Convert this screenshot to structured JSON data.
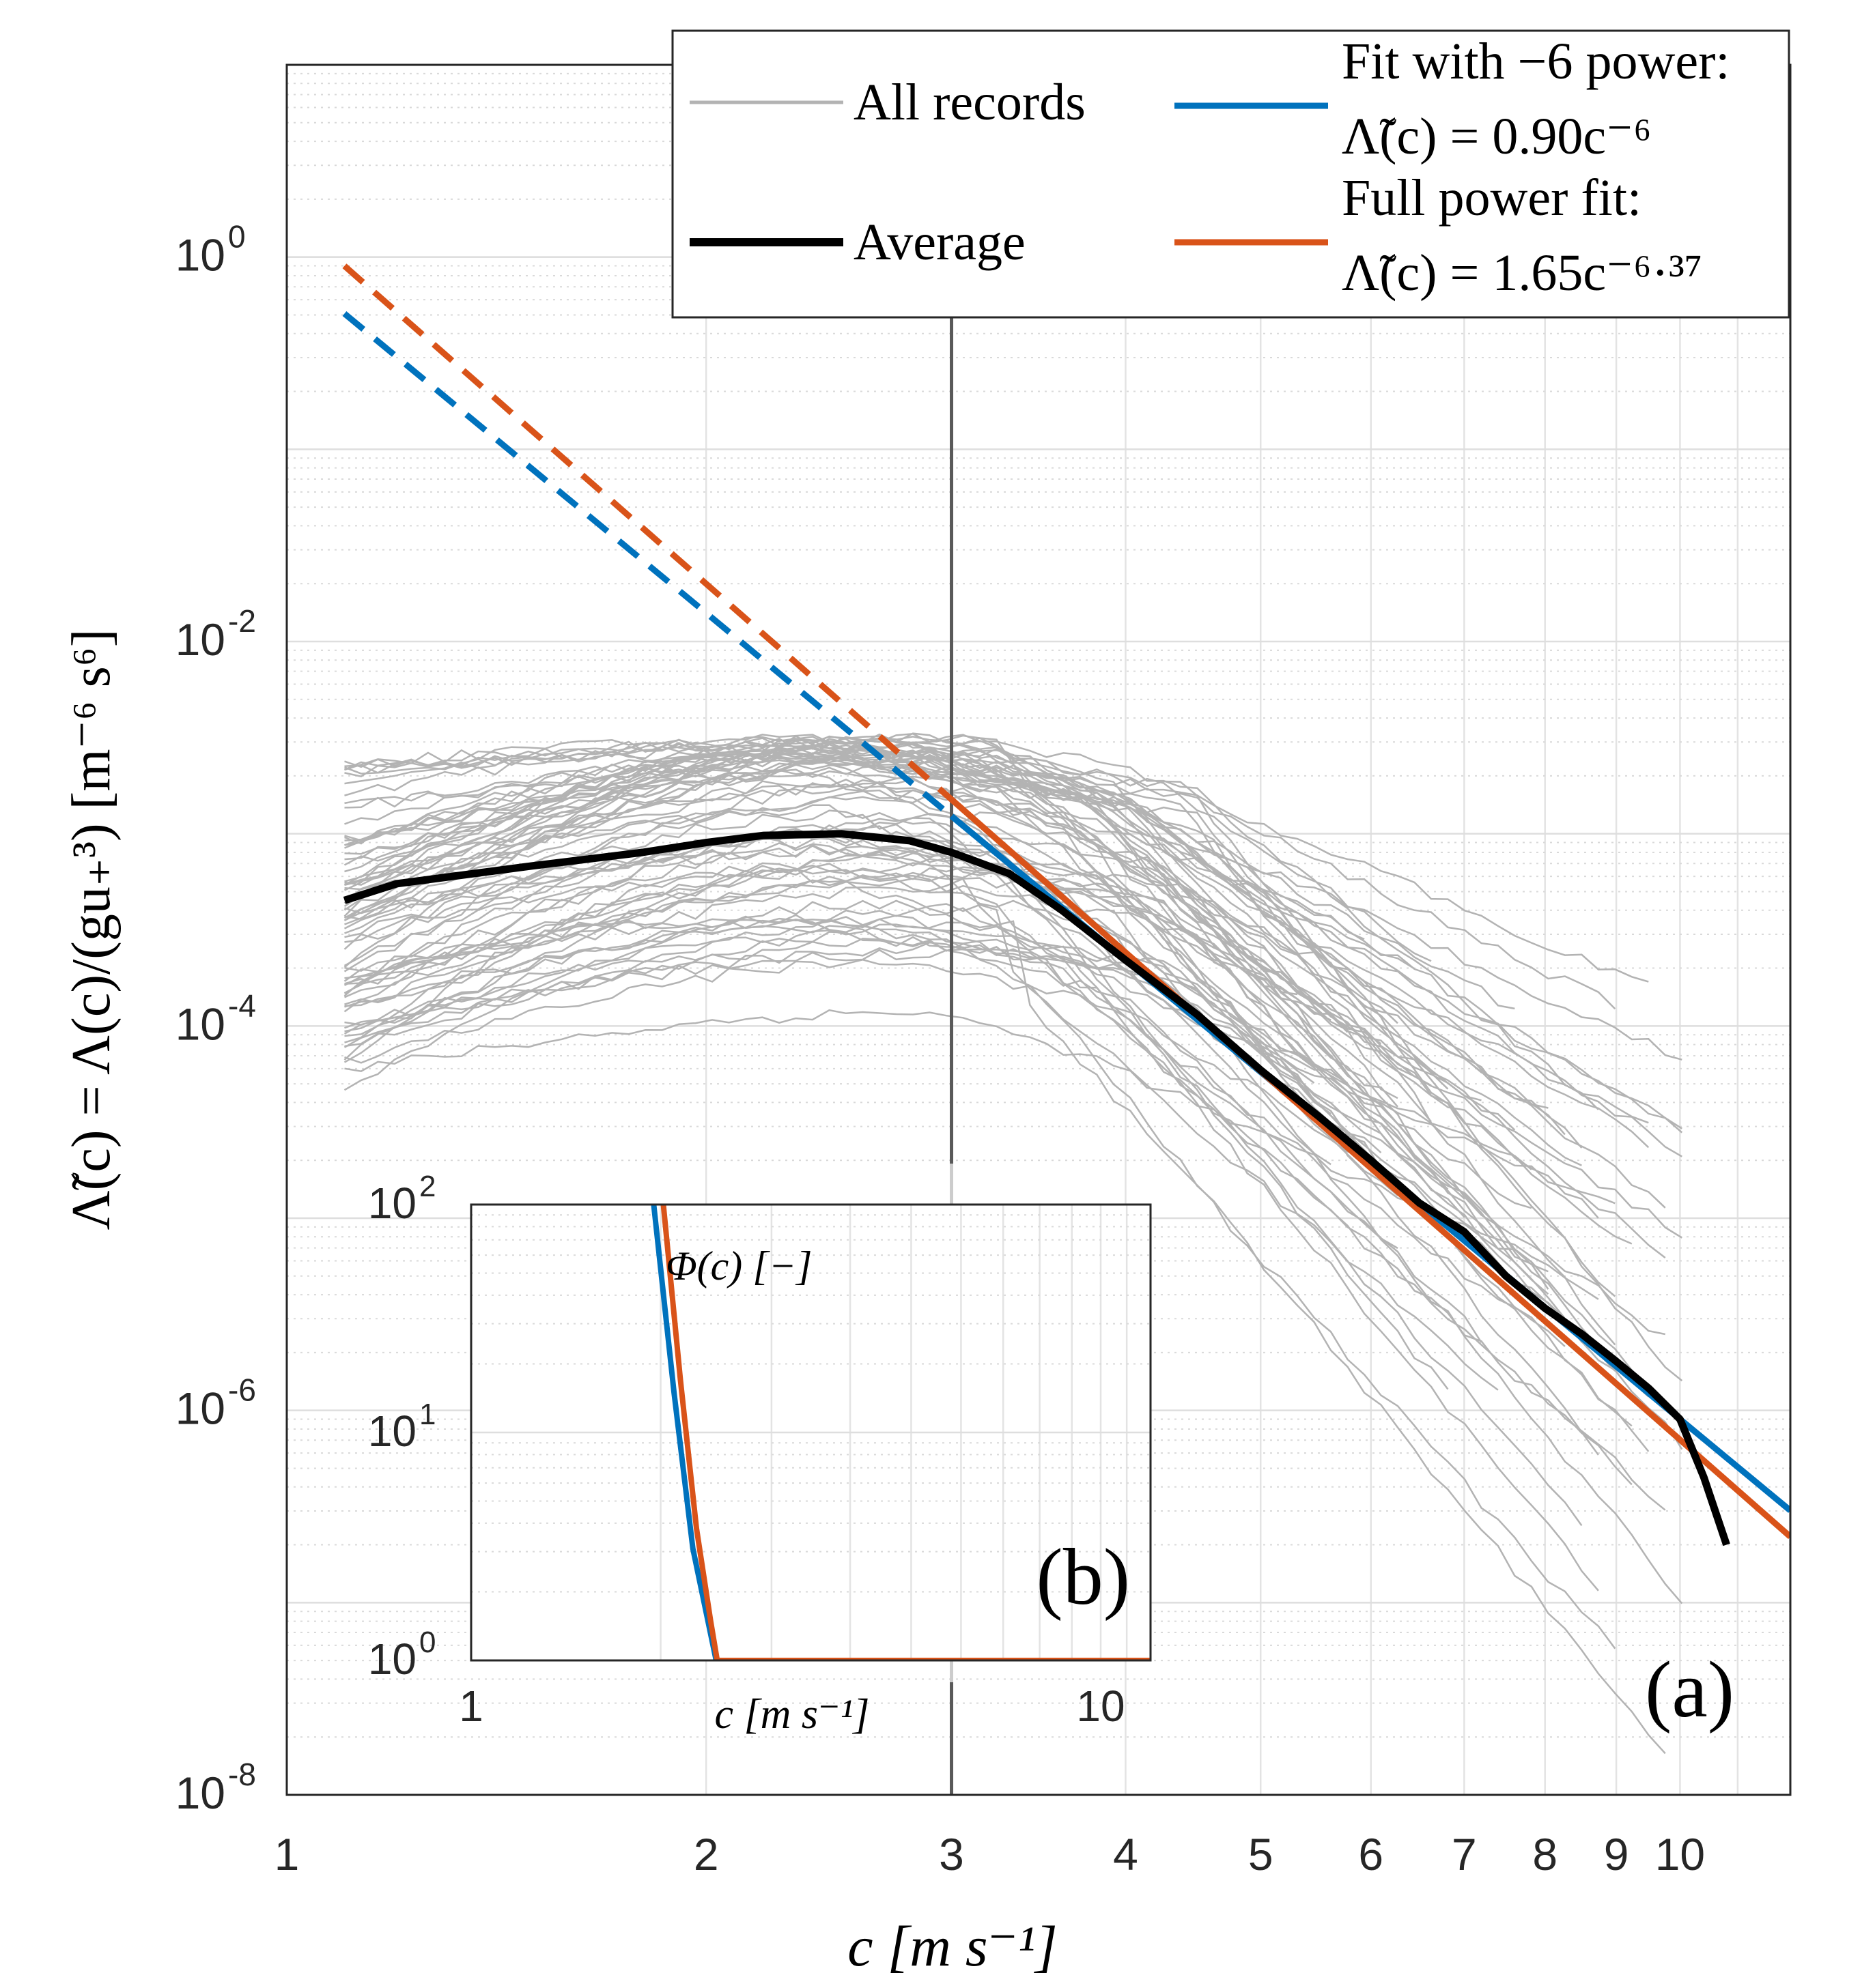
{
  "chart_data": [
    {
      "id": "a",
      "type": "line",
      "panel_label": "(a)",
      "xscale": "log",
      "yscale": "log",
      "xlim": [
        1,
        12
      ],
      "ylim": [
        1e-08,
        10
      ],
      "xlabel": "c [m s⁻¹]",
      "ylabel": "Λ̃(c) = Λ(c)/(gu₊³) [m⁻⁶ s⁶]",
      "xticks": [
        1,
        2,
        3,
        4,
        5,
        6,
        7,
        8,
        9,
        10
      ],
      "xtick_labels": [
        "1",
        "2",
        "3",
        "4",
        "5",
        "6",
        "7",
        "8",
        "9",
        "10"
      ],
      "yticks": [
        1,
        0.01,
        0.0001,
        1e-06,
        1e-08
      ],
      "ytick_bases": [
        "10",
        "10",
        "10",
        "10",
        "10"
      ],
      "ytick_exps": [
        "0",
        "-2",
        "-4",
        "-6",
        "-8"
      ],
      "grid": true,
      "vline_x": 3,
      "legend": {
        "position": "top-right",
        "entries": [
          {
            "label": "All records",
            "color": "#b3b3b3"
          },
          {
            "label": "Average",
            "color": "#000000"
          },
          {
            "label": "Fit with −6 power:",
            "formula": "Λ̃(c) = 0.90c⁻⁶",
            "color": "#0072bd"
          },
          {
            "label": "Full power fit:",
            "formula": "Λ̃(c) = 1.65c⁻⁶·³⁷",
            "color": "#d95319"
          }
        ]
      },
      "series": [
        {
          "name": "Average",
          "color": "#000000",
          "x": [
            1.1,
            1.2,
            1.5,
            1.8,
            2.0,
            2.2,
            2.5,
            2.8,
            3.0,
            3.3,
            3.6,
            4.0,
            4.5,
            5.0,
            5.5,
            6.0,
            6.5,
            7.0,
            7.5,
            8.0,
            8.5,
            9.0,
            9.5,
            10.0,
            10.4,
            10.8
          ],
          "y": [
            0.00045,
            0.00055,
            0.00068,
            0.0008,
            0.0009,
            0.00098,
            0.001,
            0.00092,
            0.0008,
            0.00062,
            0.0004,
            0.00022,
            0.000115,
            5.9e-05,
            3.4e-05,
            2e-05,
            1.2e-05,
            8.5e-06,
            5e-06,
            3.4e-06,
            2.5e-06,
            1.8e-06,
            1.3e-06,
            9e-07,
            4.5e-07,
            2e-07
          ]
        },
        {
          "name": "Fit with −6 power",
          "color": "#0072bd",
          "coefficient": 0.9,
          "exponent": -6,
          "solid_x_range": [
            3.0,
            12
          ],
          "dashed_x_range": [
            1.1,
            3.0
          ]
        },
        {
          "name": "Full power fit",
          "color": "#d95319",
          "coefficient": 1.65,
          "exponent": -6.37,
          "solid_x_range": [
            3.0,
            12
          ],
          "dashed_x_range": [
            1.1,
            3.0
          ]
        },
        {
          "name": "All records",
          "color": "#b3b3b3",
          "record_count": 75,
          "plateau_range": [
            4.5e-05,
            0.0023
          ],
          "x_start": 1.1
        }
      ]
    },
    {
      "id": "b",
      "type": "line",
      "panel_label": "(b)",
      "xscale": "log",
      "yscale": "log",
      "xlim": [
        1,
        12
      ],
      "ylim": [
        1,
        100
      ],
      "xlabel": "c [m s⁻¹]",
      "ylabel": "Φ(c) [−]",
      "xticks": [
        1,
        10
      ],
      "xtick_labels": [
        "1",
        "10"
      ],
      "yticks": [
        100,
        10,
        1
      ],
      "ytick_bases": [
        "10",
        "10",
        "10"
      ],
      "ytick_exps": [
        "2",
        "1",
        "0"
      ],
      "grid": true,
      "series": [
        {
          "name": "Fit with −6 power",
          "color": "#0072bd",
          "x": [
            1.95,
            2.1,
            2.25,
            2.45
          ],
          "y": [
            100,
            15,
            3.1,
            1.0
          ]
        },
        {
          "name": "Full power fit",
          "color": "#d95319",
          "x": [
            2.02,
            2.15,
            2.28,
            2.4,
            2.46,
            12.0
          ],
          "y": [
            100,
            17,
            3.8,
            1.5,
            1.0,
            1.0
          ]
        }
      ]
    }
  ]
}
